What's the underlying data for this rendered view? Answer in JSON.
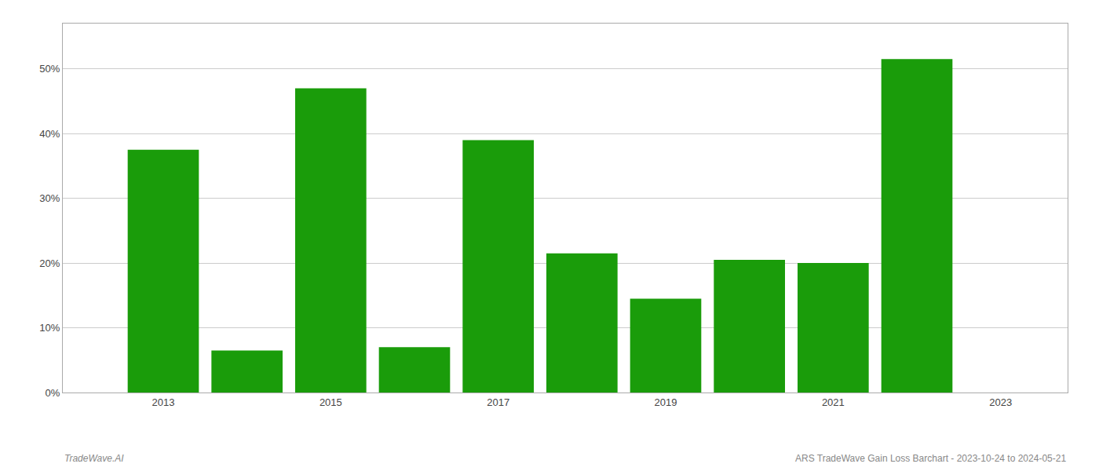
{
  "chart_data": {
    "type": "bar",
    "x": [
      2013,
      2014,
      2015,
      2016,
      2017,
      2018,
      2019,
      2020,
      2021,
      2022
    ],
    "values": [
      37.5,
      6.5,
      47.0,
      7.0,
      39.0,
      21.5,
      14.5,
      20.5,
      20.0,
      51.5
    ],
    "color": "#1a9c0a",
    "xlim": [
      2011.8,
      2023.8
    ],
    "xticks": [
      2013,
      2015,
      2017,
      2019,
      2021,
      2023
    ],
    "ylim": [
      0,
      57
    ],
    "yticks": [
      {
        "value": 0,
        "label": "0%"
      },
      {
        "value": 10,
        "label": "10%"
      },
      {
        "value": 20,
        "label": "20%"
      },
      {
        "value": 30,
        "label": "30%"
      },
      {
        "value": 40,
        "label": "40%"
      },
      {
        "value": 50,
        "label": "50%"
      }
    ],
    "grid": true,
    "annotations": [
      "TradeWave.AI",
      "ARS TradeWave Gain Loss Barchart - 2023-10-24 to 2024-05-21"
    ]
  }
}
